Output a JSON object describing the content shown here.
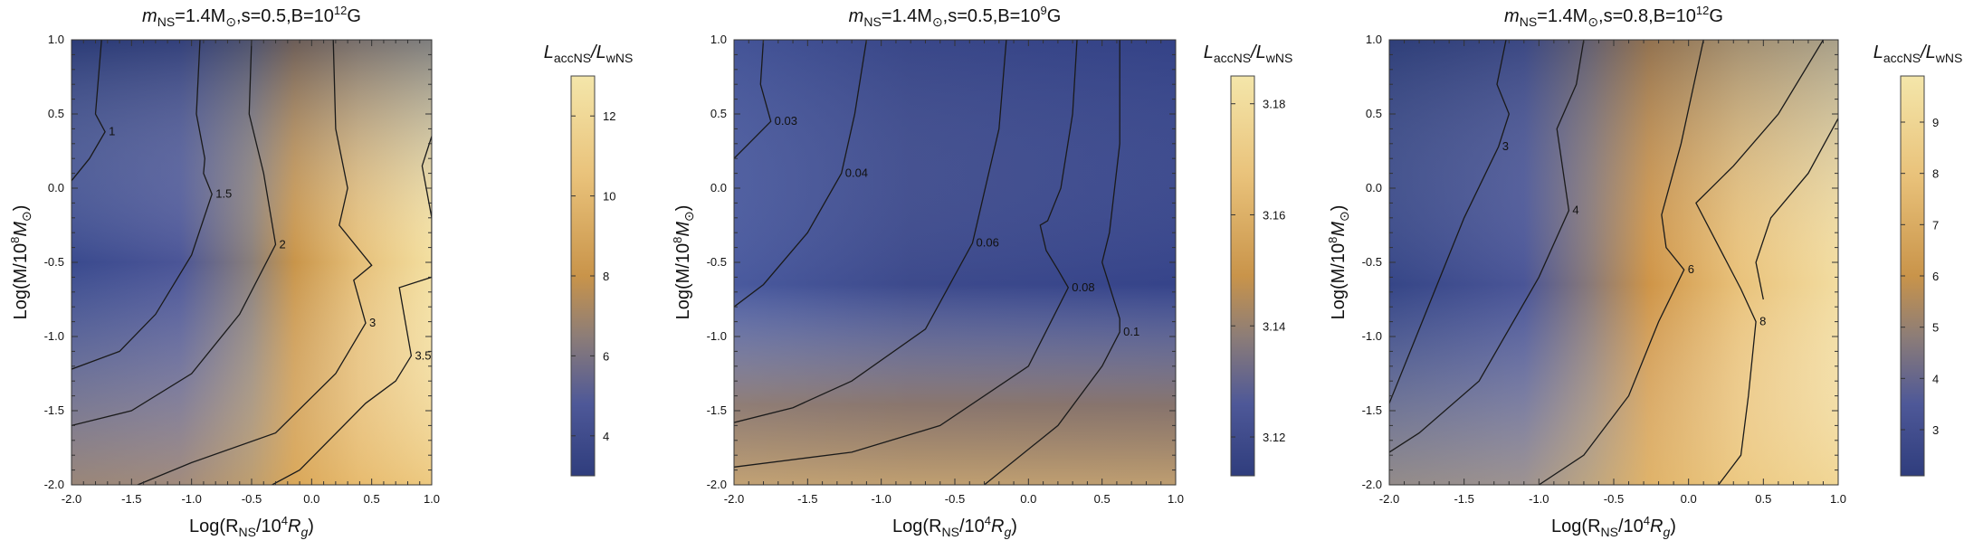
{
  "chart_data": [
    {
      "type": "heatmap",
      "title": {
        "prefix": "m",
        "prefix_sub": "NS",
        "mass": "=1.4M",
        "mass_sub": "⊙",
        "rest": ",s=0.5,B=10",
        "exp": "12",
        "unit": "G"
      },
      "xlabel": {
        "main": "Log(R",
        "sub": "NS",
        "mid": "/10",
        "sup": "4",
        "end": "R",
        "end_sub": "g",
        "close": ")"
      },
      "ylabel": {
        "main": "Log(M/10",
        "sup": "8",
        "end": "M",
        "end_sub": "⊙",
        "close": ")"
      },
      "xlim": [
        -2.0,
        1.0
      ],
      "ylim": [
        -2.0,
        1.0
      ],
      "x_ticks": [
        "-2.0",
        "-1.5",
        "-1.0",
        "-0.5",
        "0.0",
        "0.5",
        "1.0"
      ],
      "y_ticks": [
        "1.0",
        "0.5",
        "0.0",
        "-0.5",
        "-1.0",
        "-1.5",
        "-2.0"
      ],
      "colorbar": {
        "label": {
          "a": "L",
          "a_sub": "accNS",
          "b": "/L",
          "b_sub": "wNS"
        },
        "range": [
          3,
          13
        ],
        "ticks": [
          4,
          6,
          8,
          10,
          12
        ],
        "tick_labels": [
          "4",
          "6",
          "8",
          "10",
          "12"
        ]
      },
      "contours": [
        {
          "label": "1",
          "label_at": [
            -1.72,
            0.38
          ],
          "points": [
            [
              -1.75,
              1.0
            ],
            [
              -1.8,
              0.5
            ],
            [
              -1.72,
              0.38
            ],
            [
              -1.85,
              0.2
            ],
            [
              -2.0,
              0.05
            ]
          ]
        },
        {
          "label": "1.5",
          "label_at": [
            -0.83,
            -0.04
          ],
          "points": [
            [
              -0.93,
              1.0
            ],
            [
              -0.96,
              0.5
            ],
            [
              -0.89,
              0.2
            ],
            [
              -0.9,
              0.1
            ],
            [
              -0.83,
              -0.04
            ],
            [
              -1.0,
              -0.45
            ],
            [
              -1.3,
              -0.85
            ],
            [
              -1.6,
              -1.1
            ],
            [
              -2.0,
              -1.22
            ]
          ]
        },
        {
          "label": "2",
          "label_at": [
            -0.3,
            -0.38
          ],
          "points": [
            [
              -0.5,
              1.0
            ],
            [
              -0.52,
              0.5
            ],
            [
              -0.4,
              0.1
            ],
            [
              -0.3,
              -0.38
            ],
            [
              -0.6,
              -0.85
            ],
            [
              -1.0,
              -1.25
            ],
            [
              -1.5,
              -1.5
            ],
            [
              -2.0,
              -1.6
            ]
          ]
        },
        {
          "label": "3",
          "label_at": [
            0.45,
            -0.91
          ],
          "points": [
            [
              0.18,
              1.0
            ],
            [
              0.2,
              0.4
            ],
            [
              0.3,
              0.0
            ],
            [
              0.23,
              -0.25
            ],
            [
              0.5,
              -0.52
            ],
            [
              0.35,
              -0.62
            ],
            [
              0.45,
              -0.91
            ],
            [
              0.2,
              -1.25
            ],
            [
              -0.3,
              -1.65
            ],
            [
              -1.0,
              -1.85
            ],
            [
              -1.45,
              -2.0
            ]
          ]
        },
        {
          "label": "3.5",
          "label_at": [
            0.83,
            -1.13
          ],
          "points": [
            [
              1.0,
              0.35
            ],
            [
              0.92,
              0.15
            ],
            [
              1.0,
              -0.2
            ],
            [
              1.0,
              -0.6
            ],
            [
              0.73,
              -0.67
            ],
            [
              0.83,
              -1.13
            ],
            [
              0.7,
              -1.3
            ],
            [
              0.45,
              -1.45
            ],
            [
              -0.1,
              -1.9
            ],
            [
              -0.33,
              -2.0
            ]
          ]
        }
      ]
    },
    {
      "type": "heatmap",
      "title": {
        "prefix": "m",
        "prefix_sub": "NS",
        "mass": "=1.4M",
        "mass_sub": "⊙",
        "rest": ",s=0.5,B=10",
        "exp": "9",
        "unit": "G"
      },
      "xlabel": {
        "main": "Log(R",
        "sub": "NS",
        "mid": "/10",
        "sup": "4",
        "end": "R",
        "end_sub": "g",
        "close": ")"
      },
      "ylabel": {
        "main": "Log(M/10",
        "sup": "8",
        "end": "M",
        "end_sub": "⊙",
        "close": ")"
      },
      "xlim": [
        -2.0,
        1.0
      ],
      "ylim": [
        -2.0,
        1.0
      ],
      "x_ticks": [
        "-2.0",
        "-1.5",
        "-1.0",
        "-0.5",
        "0.0",
        "0.5",
        "1.0"
      ],
      "y_ticks": [
        "1.0",
        "0.5",
        "0.0",
        "-0.5",
        "-1.0",
        "-1.5",
        "-2.0"
      ],
      "colorbar": {
        "label": {
          "a": "L",
          "a_sub": "accNS",
          "b": "/L",
          "b_sub": "wNS"
        },
        "range": [
          3.113,
          3.185
        ],
        "ticks": [
          3.12,
          3.14,
          3.16,
          3.18
        ],
        "tick_labels": [
          "3.12",
          "3.14",
          "3.16",
          "3.18"
        ]
      },
      "contours": [
        {
          "label": "0.03",
          "label_at": [
            -1.75,
            0.45
          ],
          "points": [
            [
              -1.8,
              1.0
            ],
            [
              -1.82,
              0.7
            ],
            [
              -1.75,
              0.45
            ],
            [
              -1.9,
              0.3
            ],
            [
              -2.0,
              0.2
            ]
          ]
        },
        {
          "label": "0.04",
          "label_at": [
            -1.27,
            0.1
          ],
          "points": [
            [
              -1.1,
              1.0
            ],
            [
              -1.18,
              0.5
            ],
            [
              -1.27,
              0.1
            ],
            [
              -1.5,
              -0.3
            ],
            [
              -1.8,
              -0.65
            ],
            [
              -2.0,
              -0.8
            ]
          ]
        },
        {
          "label": "0.06",
          "label_at": [
            -0.38,
            -0.37
          ],
          "points": [
            [
              -0.15,
              1.0
            ],
            [
              -0.2,
              0.4
            ],
            [
              -0.38,
              -0.37
            ],
            [
              -0.7,
              -0.95
            ],
            [
              -1.2,
              -1.3
            ],
            [
              -1.6,
              -1.48
            ],
            [
              -2.0,
              -1.58
            ]
          ]
        },
        {
          "label": "0.08",
          "label_at": [
            0.27,
            -0.67
          ],
          "points": [
            [
              0.33,
              1.0
            ],
            [
              0.3,
              0.5
            ],
            [
              0.22,
              0.0
            ],
            [
              0.13,
              -0.22
            ],
            [
              0.08,
              -0.25
            ],
            [
              0.12,
              -0.42
            ],
            [
              0.2,
              -0.55
            ],
            [
              0.27,
              -0.67
            ],
            [
              0.0,
              -1.2
            ],
            [
              -0.6,
              -1.6
            ],
            [
              -1.2,
              -1.78
            ],
            [
              -2.0,
              -1.88
            ]
          ]
        },
        {
          "label": "0.1",
          "label_at": [
            0.62,
            -0.97
          ],
          "points": [
            [
              0.62,
              1.0
            ],
            [
              0.62,
              0.3
            ],
            [
              0.55,
              -0.3
            ],
            [
              0.5,
              -0.5
            ],
            [
              0.62,
              -0.88
            ],
            [
              0.62,
              -0.97
            ],
            [
              0.5,
              -1.2
            ],
            [
              0.2,
              -1.6
            ],
            [
              -0.3,
              -2.0
            ]
          ]
        }
      ]
    },
    {
      "type": "heatmap",
      "title": {
        "prefix": "m",
        "prefix_sub": "NS",
        "mass": "=1.4M",
        "mass_sub": "⊙",
        "rest": ",s=0.8,B=10",
        "exp": "12",
        "unit": "G"
      },
      "xlabel": {
        "main": "Log(R",
        "sub": "NS",
        "mid": "/10",
        "sup": "4",
        "end": "R",
        "end_sub": "g",
        "close": ")"
      },
      "ylabel": {
        "main": "Log(M/10",
        "sup": "8",
        "end": "M",
        "end_sub": "⊙",
        "close": ")"
      },
      "xlim": [
        -2.0,
        1.0
      ],
      "ylim": [
        -2.0,
        1.0
      ],
      "x_ticks": [
        "-2.0",
        "-1.5",
        "-1.0",
        "-0.5",
        "0.0",
        "0.5",
        "1.0"
      ],
      "y_ticks": [
        "1.0",
        "0.5",
        "0.0",
        "-0.5",
        "-1.0",
        "-1.5",
        "-2.0"
      ],
      "colorbar": {
        "label": {
          "a": "L",
          "a_sub": "accNS",
          "b": "/L",
          "b_sub": "wNS"
        },
        "range": [
          2.1,
          9.9
        ],
        "ticks": [
          3,
          4,
          5,
          6,
          7,
          8,
          9
        ],
        "tick_labels": [
          "3",
          "4",
          "5",
          "6",
          "7",
          "8",
          "9"
        ]
      },
      "contours": [
        {
          "label": "3",
          "label_at": [
            -1.27,
            0.28
          ],
          "points": [
            [
              -1.22,
              1.0
            ],
            [
              -1.28,
              0.7
            ],
            [
              -1.2,
              0.5
            ],
            [
              -1.27,
              0.28
            ],
            [
              -1.5,
              -0.2
            ],
            [
              -1.8,
              -0.95
            ],
            [
              -2.0,
              -1.45
            ]
          ]
        },
        {
          "label": "4",
          "label_at": [
            -0.8,
            -0.15
          ],
          "points": [
            [
              -0.7,
              1.0
            ],
            [
              -0.75,
              0.7
            ],
            [
              -0.88,
              0.4
            ],
            [
              -0.8,
              -0.15
            ],
            [
              -1.0,
              -0.6
            ],
            [
              -1.4,
              -1.3
            ],
            [
              -1.8,
              -1.65
            ],
            [
              -2.0,
              -1.78
            ]
          ]
        },
        {
          "label": "6",
          "label_at": [
            -0.03,
            -0.55
          ],
          "points": [
            [
              0.1,
              1.0
            ],
            [
              -0.05,
              0.3
            ],
            [
              -0.18,
              -0.18
            ],
            [
              -0.15,
              -0.4
            ],
            [
              -0.03,
              -0.55
            ],
            [
              -0.2,
              -0.9
            ],
            [
              -0.4,
              -1.4
            ],
            [
              -0.7,
              -1.8
            ],
            [
              -1.0,
              -2.0
            ]
          ]
        },
        {
          "label": "8",
          "label_at": [
            0.45,
            -0.9
          ],
          "points": [
            [
              0.9,
              1.0
            ],
            [
              0.6,
              0.5
            ],
            [
              0.3,
              0.15
            ],
            [
              0.05,
              -0.1
            ],
            [
              0.35,
              -0.68
            ],
            [
              0.45,
              -0.9
            ],
            [
              0.4,
              -1.4
            ],
            [
              0.35,
              -1.8
            ],
            [
              0.2,
              -2.0
            ]
          ]
        },
        {
          "label": "",
          "label_at": null,
          "points": [
            [
              1.0,
              0.47
            ],
            [
              0.8,
              0.1
            ],
            [
              0.55,
              -0.2
            ],
            [
              0.45,
              -0.5
            ],
            [
              0.5,
              -0.75
            ]
          ]
        }
      ]
    }
  ]
}
